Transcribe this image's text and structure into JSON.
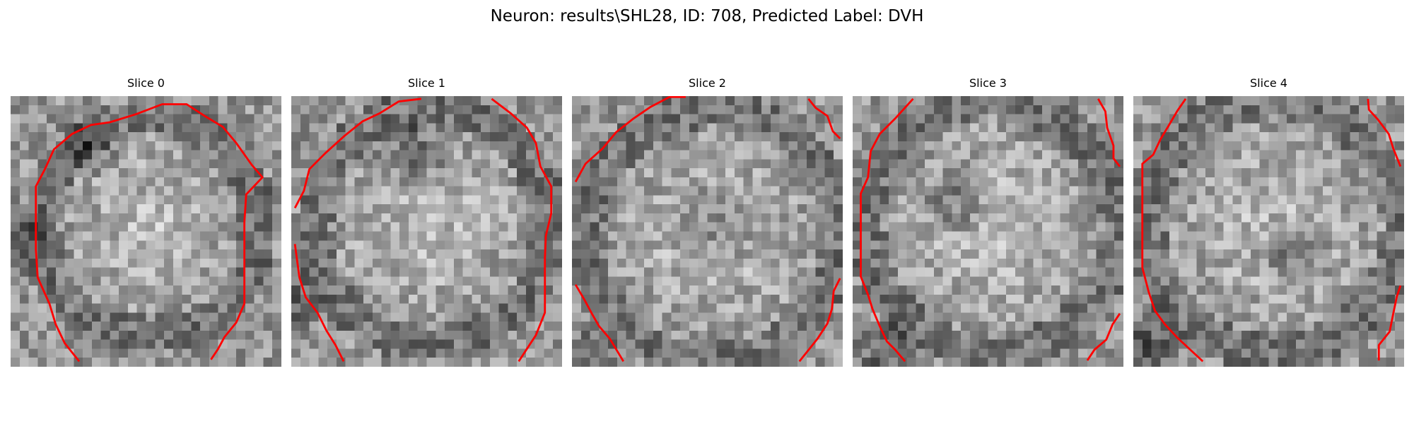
{
  "figure": {
    "title": "Neuron: results\\SHL28, ID: 708, Predicted Label: DVH"
  },
  "panels": [
    {
      "title": "Slice 0"
    },
    {
      "title": "Slice 1"
    },
    {
      "title": "Slice 2"
    },
    {
      "title": "Slice 3"
    },
    {
      "title": "Slice 4"
    }
  ],
  "colors": {
    "contour": "#ff0000",
    "colormap": "grayscale"
  }
}
